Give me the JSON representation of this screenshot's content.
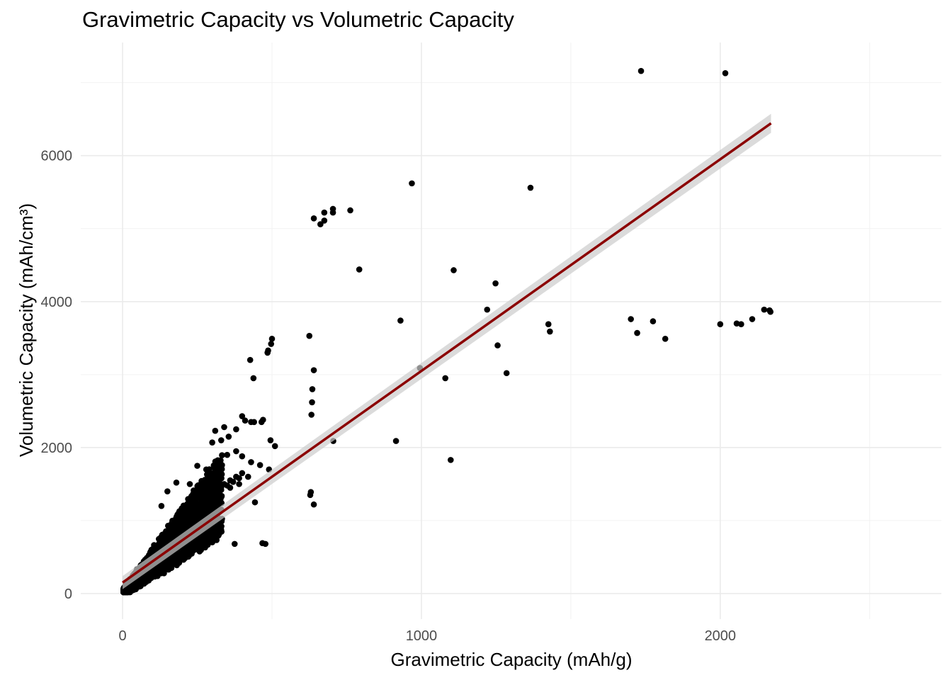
{
  "chart_data": {
    "type": "scatter",
    "title": "Gravimetric Capacity vs Volumetric Capacity",
    "xlabel": "Gravimetric Capacity (mAh/g)",
    "ylabel": "Volumetric Capacity (mAh/cm³)",
    "xlim": [
      -140,
      2740
    ],
    "ylim": [
      -350,
      7550
    ],
    "x_ticks": [
      0,
      1000,
      2000
    ],
    "y_ticks": [
      0,
      2000,
      4000,
      6000
    ],
    "x_ticks_minor": [
      500,
      1500,
      2500
    ],
    "y_ticks_minor": [
      1000,
      3000,
      5000,
      7000
    ],
    "grid": true,
    "legend": "none",
    "point_color": "#000000",
    "line_color": "#8b0000",
    "band_color": "#cccccc",
    "series": [
      {
        "type": "scatter",
        "points": [
          [
            1735,
            7160
          ],
          [
            2017,
            7130
          ],
          [
            968,
            5620
          ],
          [
            1365,
            5560
          ],
          [
            762,
            5250
          ],
          [
            704,
            5270
          ],
          [
            704,
            5220
          ],
          [
            675,
            5220
          ],
          [
            640,
            5140
          ],
          [
            662,
            5060
          ],
          [
            675,
            5110
          ],
          [
            792,
            4440
          ],
          [
            1108,
            4430
          ],
          [
            1248,
            4250
          ],
          [
            930,
            3740
          ],
          [
            1220,
            3890
          ],
          [
            1701,
            3760
          ],
          [
            1775,
            3730
          ],
          [
            1722,
            3570
          ],
          [
            1816,
            3490
          ],
          [
            1425,
            3690
          ],
          [
            1430,
            3590
          ],
          [
            2000,
            3690
          ],
          [
            2055,
            3700
          ],
          [
            2070,
            3690
          ],
          [
            2107,
            3760
          ],
          [
            2147,
            3890
          ],
          [
            2165,
            3880
          ],
          [
            2168,
            3860
          ],
          [
            1255,
            3400
          ],
          [
            1285,
            3020
          ],
          [
            995,
            3090
          ],
          [
            1080,
            2950
          ],
          [
            1098,
            1830
          ],
          [
            915,
            2090
          ],
          [
            705,
            2090
          ],
          [
            625,
            3530
          ],
          [
            640,
            3060
          ],
          [
            635,
            2800
          ],
          [
            634,
            2620
          ],
          [
            632,
            2450
          ],
          [
            630,
            1390
          ],
          [
            628,
            1350
          ],
          [
            640,
            1220
          ],
          [
            500,
            3490
          ],
          [
            497,
            3420
          ],
          [
            487,
            3330
          ],
          [
            485,
            3300
          ],
          [
            427,
            3200
          ],
          [
            438,
            2950
          ],
          [
            470,
            2380
          ],
          [
            465,
            2350
          ],
          [
            440,
            2350
          ],
          [
            430,
            2350
          ],
          [
            510,
            2020
          ],
          [
            495,
            2100
          ],
          [
            400,
            2430
          ],
          [
            410,
            2370
          ],
          [
            380,
            2250
          ],
          [
            340,
            2280
          ],
          [
            310,
            2230
          ],
          [
            300,
            2070
          ],
          [
            330,
            2100
          ],
          [
            355,
            2150
          ],
          [
            350,
            1900
          ],
          [
            380,
            1950
          ],
          [
            400,
            1880
          ],
          [
            430,
            1800
          ],
          [
            460,
            1760
          ],
          [
            490,
            1700
          ],
          [
            420,
            1600
          ],
          [
            390,
            1500
          ],
          [
            360,
            1450
          ],
          [
            443,
            1250
          ],
          [
            468,
            690
          ],
          [
            478,
            680
          ],
          [
            375,
            680
          ],
          [
            330,
            1150
          ],
          [
            280,
            1700
          ],
          [
            250,
            1750
          ],
          [
            225,
            1500
          ],
          [
            180,
            1520
          ],
          [
            150,
            1400
          ],
          [
            130,
            1200
          ]
        ]
      },
      {
        "type": "cluster",
        "description_points": "dense cloud of low-capacity materials",
        "points": [
          [
            5,
            40
          ],
          [
            8,
            80
          ],
          [
            12,
            120
          ],
          [
            18,
            150
          ],
          [
            22,
            100
          ],
          [
            25,
            200
          ],
          [
            30,
            180
          ],
          [
            35,
            250
          ],
          [
            40,
            230
          ],
          [
            45,
            300
          ],
          [
            50,
            280
          ],
          [
            55,
            350
          ],
          [
            60,
            330
          ],
          [
            65,
            400
          ],
          [
            70,
            380
          ],
          [
            75,
            450
          ],
          [
            80,
            420
          ],
          [
            85,
            500
          ],
          [
            90,
            470
          ],
          [
            95,
            550
          ],
          [
            100,
            520
          ],
          [
            105,
            600
          ],
          [
            110,
            580
          ],
          [
            115,
            650
          ],
          [
            120,
            620
          ],
          [
            125,
            700
          ],
          [
            130,
            680
          ],
          [
            135,
            750
          ],
          [
            140,
            720
          ],
          [
            145,
            800
          ],
          [
            150,
            770
          ],
          [
            155,
            850
          ],
          [
            160,
            820
          ],
          [
            165,
            900
          ],
          [
            170,
            870
          ],
          [
            175,
            950
          ],
          [
            180,
            920
          ],
          [
            185,
            1000
          ],
          [
            190,
            970
          ],
          [
            195,
            1050
          ],
          [
            200,
            1020
          ],
          [
            205,
            1100
          ],
          [
            210,
            1080
          ],
          [
            215,
            1150
          ],
          [
            220,
            1120
          ],
          [
            225,
            1200
          ],
          [
            230,
            1180
          ],
          [
            240,
            1250
          ],
          [
            250,
            1230
          ],
          [
            260,
            1300
          ],
          [
            270,
            1280
          ],
          [
            280,
            1350
          ],
          [
            290,
            1320
          ],
          [
            300,
            1400
          ],
          [
            310,
            1380
          ],
          [
            320,
            1450
          ],
          [
            330,
            1420
          ],
          [
            340,
            1500
          ],
          [
            350,
            1480
          ],
          [
            360,
            1550
          ],
          [
            370,
            1530
          ],
          [
            380,
            1600
          ],
          [
            390,
            1580
          ],
          [
            400,
            1650
          ]
        ]
      }
    ],
    "regression": {
      "x_range": [
        0,
        2170
      ],
      "intercept": 150,
      "slope": 2.9,
      "band_at_start": 90,
      "band_at_end": 130
    }
  }
}
